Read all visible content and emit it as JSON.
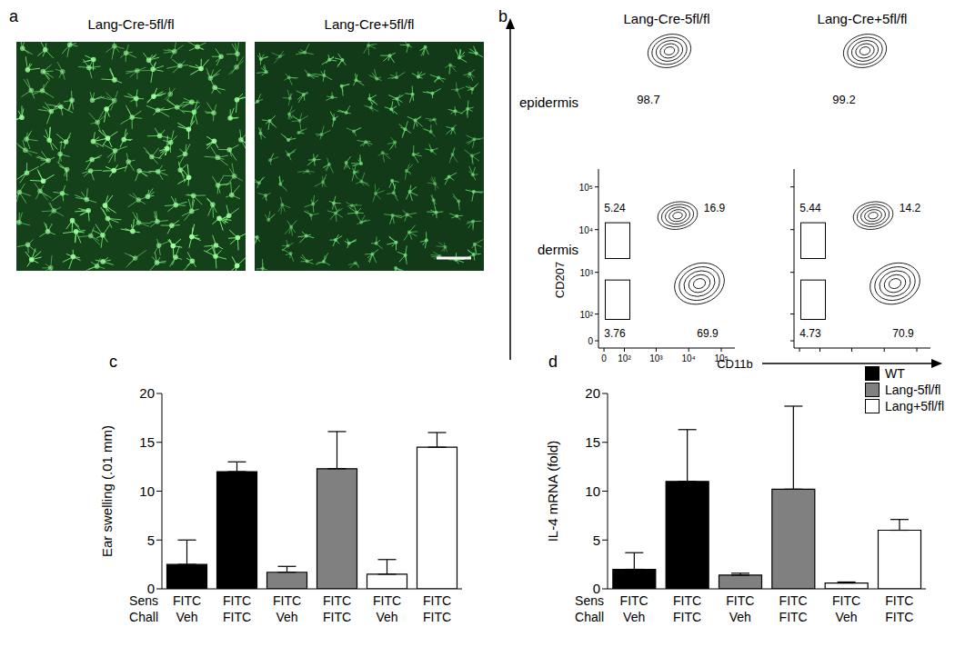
{
  "panel_labels": [
    "a",
    "b",
    "c",
    "d"
  ],
  "images": {
    "titles": [
      "Lang-Cre-5fl/fl",
      "Lang-Cre+5fl/fl"
    ]
  },
  "flow": {
    "column_titles": [
      "Lang-Cre-5fl/fl",
      "Lang-Cre+5fl/fl"
    ],
    "row_labels": [
      "epidermis",
      "dermis"
    ],
    "x_label": "CD11b",
    "y_label": "CD207",
    "range": [
      -20,
      262144
    ],
    "ticks": [
      {
        "value": 0,
        "label": "0"
      },
      {
        "value": 100,
        "label": "10²"
      },
      {
        "value": 1000,
        "label": "10³"
      },
      {
        "value": 10000,
        "label": "10⁴"
      },
      {
        "value": 100000,
        "label": "10⁵"
      }
    ],
    "plots": [
      {
        "row": "epidermis",
        "column": 0,
        "gates": [
          98.7
        ]
      },
      {
        "row": "epidermis",
        "column": 1,
        "gates": [
          99.2
        ]
      },
      {
        "row": "dermis",
        "column": 0,
        "gates": [
          5.24,
          16.9,
          3.76,
          69.9
        ]
      },
      {
        "row": "dermis",
        "column": 1,
        "gates": [
          5.44,
          14.2,
          4.73,
          70.9
        ]
      }
    ]
  },
  "chart_data": [
    {
      "type": "bar",
      "y_label": "Ear swelling (.01 mm)",
      "category_rows": [
        {
          "label": "Sens",
          "values": [
            "FITC",
            "FITC",
            "FITC",
            "FITC",
            "FITC",
            "FITC"
          ]
        },
        {
          "label": "Chall",
          "values": [
            "Veh",
            "FITC",
            "Veh",
            "FITC",
            "Veh",
            "FITC"
          ]
        }
      ],
      "values": [
        2.5,
        12,
        1.7,
        12.3,
        1.5,
        14.5
      ],
      "errors": [
        2.5,
        1,
        0.6,
        3.8,
        1.5,
        1.5
      ],
      "colors": [
        "#000000",
        "#000000",
        "#808080",
        "#808080",
        "#ffffff",
        "#ffffff"
      ],
      "ylim": [
        0,
        20
      ],
      "yticks": [
        0,
        5,
        10,
        15,
        20
      ],
      "grid": false
    },
    {
      "type": "bar",
      "y_label": "IL-4 mRNA (fold)",
      "category_rows": [
        {
          "label": "Sens",
          "values": [
            "FITC",
            "FITC",
            "FITC",
            "FITC",
            "FITC",
            "FITC"
          ]
        },
        {
          "label": "Chall",
          "values": [
            "Veh",
            "FITC",
            "Veh",
            "FITC",
            "Veh",
            "FITC"
          ]
        }
      ],
      "values": [
        2,
        11,
        1.4,
        10.2,
        0.6,
        6
      ],
      "errors": [
        1.7,
        5.3,
        0.2,
        8.5,
        0.1,
        1.1
      ],
      "colors": [
        "#000000",
        "#000000",
        "#808080",
        "#808080",
        "#ffffff",
        "#ffffff"
      ],
      "ylim": [
        0,
        20
      ],
      "yticks": [
        0,
        5,
        10,
        15,
        20
      ],
      "grid": false,
      "legend": "top-right",
      "legend_entries": [
        {
          "name": "WT",
          "color": "#000000"
        },
        {
          "name": "Lang-5fl/fl",
          "color": "#808080"
        },
        {
          "name": "Lang+5fl/fl",
          "color": "#ffffff"
        }
      ]
    }
  ]
}
